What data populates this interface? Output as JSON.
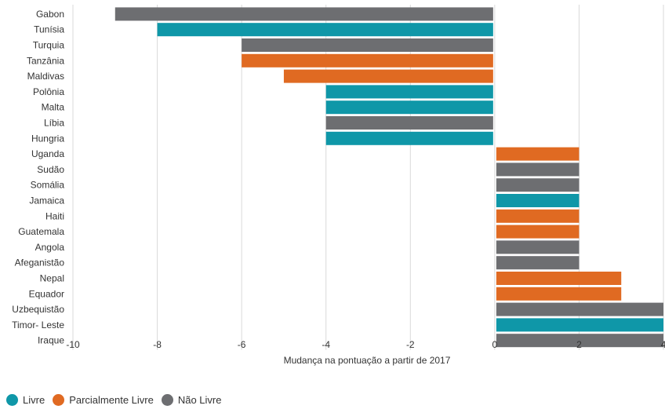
{
  "chart_data": {
    "type": "bar",
    "orientation": "horizontal",
    "xlabel": "Mudança na pontuação a partir de  2017",
    "xlim": [
      -10,
      4
    ],
    "xticks": [
      "-10",
      "-8",
      "-6",
      "-4",
      "-2",
      "0",
      "2",
      "4"
    ],
    "grid": true,
    "legend_position": "bottom-left",
    "categories": [
      "Gabon",
      "Tunísia",
      "Turquia",
      "Tanzânia",
      "Maldivas",
      "Polônia",
      "Malta",
      "Líbia",
      "Hungria",
      "Uganda",
      "Sudão",
      "Somália",
      "Jamaica",
      "Haiti",
      "Guatemala",
      "Angola",
      "Afeganistão",
      "Nepal",
      "Equador",
      "Uzbequistão",
      "Timor- Leste",
      "Iraque"
    ],
    "values": [
      -9,
      -8,
      -6,
      -6,
      -5,
      -4,
      -4,
      -4,
      -4,
      2,
      2,
      2,
      2,
      2,
      2,
      2,
      2,
      3,
      3,
      4,
      4,
      4
    ],
    "status": [
      "nao_livre",
      "livre",
      "nao_livre",
      "parcial",
      "parcial",
      "livre",
      "livre",
      "nao_livre",
      "livre",
      "parcial",
      "nao_livre",
      "nao_livre",
      "livre",
      "parcial",
      "parcial",
      "nao_livre",
      "nao_livre",
      "parcial",
      "parcial",
      "nao_livre",
      "livre",
      "nao_livre"
    ],
    "series": [
      {
        "key": "livre",
        "name": "Livre",
        "color": "#0f97a8"
      },
      {
        "key": "parcial",
        "name": "Parcialmente Livre",
        "color": "#e06a22"
      },
      {
        "key": "nao_livre",
        "name": "Não Livre",
        "color": "#6d6e71"
      }
    ]
  }
}
